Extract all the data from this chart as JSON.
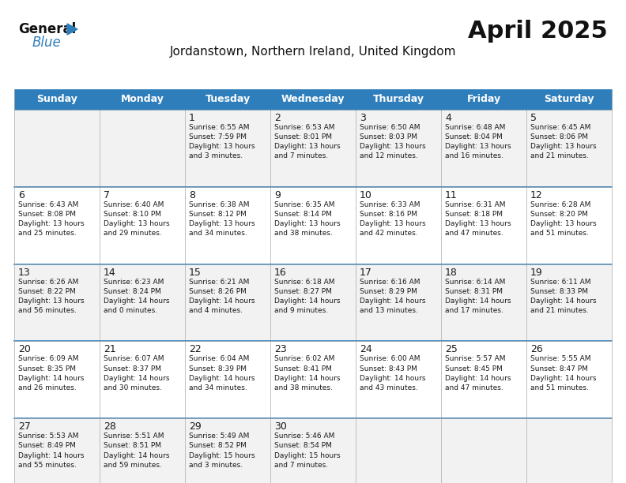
{
  "title": "April 2025",
  "subtitle": "Jordanstown, Northern Ireland, United Kingdom",
  "header_bg": "#2E7EBB",
  "header_text_color": "#FFFFFF",
  "cell_bg_odd": "#F2F2F2",
  "cell_bg_even": "#FFFFFF",
  "border_color": "#AAAAAA",
  "text_color": "#1a1a1a",
  "days_of_week": [
    "Sunday",
    "Monday",
    "Tuesday",
    "Wednesday",
    "Thursday",
    "Friday",
    "Saturday"
  ],
  "weeks": [
    [
      {
        "day": "",
        "info": ""
      },
      {
        "day": "",
        "info": ""
      },
      {
        "day": "1",
        "info": "Sunrise: 6:55 AM\nSunset: 7:59 PM\nDaylight: 13 hours\nand 3 minutes."
      },
      {
        "day": "2",
        "info": "Sunrise: 6:53 AM\nSunset: 8:01 PM\nDaylight: 13 hours\nand 7 minutes."
      },
      {
        "day": "3",
        "info": "Sunrise: 6:50 AM\nSunset: 8:03 PM\nDaylight: 13 hours\nand 12 minutes."
      },
      {
        "day": "4",
        "info": "Sunrise: 6:48 AM\nSunset: 8:04 PM\nDaylight: 13 hours\nand 16 minutes."
      },
      {
        "day": "5",
        "info": "Sunrise: 6:45 AM\nSunset: 8:06 PM\nDaylight: 13 hours\nand 21 minutes."
      }
    ],
    [
      {
        "day": "6",
        "info": "Sunrise: 6:43 AM\nSunset: 8:08 PM\nDaylight: 13 hours\nand 25 minutes."
      },
      {
        "day": "7",
        "info": "Sunrise: 6:40 AM\nSunset: 8:10 PM\nDaylight: 13 hours\nand 29 minutes."
      },
      {
        "day": "8",
        "info": "Sunrise: 6:38 AM\nSunset: 8:12 PM\nDaylight: 13 hours\nand 34 minutes."
      },
      {
        "day": "9",
        "info": "Sunrise: 6:35 AM\nSunset: 8:14 PM\nDaylight: 13 hours\nand 38 minutes."
      },
      {
        "day": "10",
        "info": "Sunrise: 6:33 AM\nSunset: 8:16 PM\nDaylight: 13 hours\nand 42 minutes."
      },
      {
        "day": "11",
        "info": "Sunrise: 6:31 AM\nSunset: 8:18 PM\nDaylight: 13 hours\nand 47 minutes."
      },
      {
        "day": "12",
        "info": "Sunrise: 6:28 AM\nSunset: 8:20 PM\nDaylight: 13 hours\nand 51 minutes."
      }
    ],
    [
      {
        "day": "13",
        "info": "Sunrise: 6:26 AM\nSunset: 8:22 PM\nDaylight: 13 hours\nand 56 minutes."
      },
      {
        "day": "14",
        "info": "Sunrise: 6:23 AM\nSunset: 8:24 PM\nDaylight: 14 hours\nand 0 minutes."
      },
      {
        "day": "15",
        "info": "Sunrise: 6:21 AM\nSunset: 8:26 PM\nDaylight: 14 hours\nand 4 minutes."
      },
      {
        "day": "16",
        "info": "Sunrise: 6:18 AM\nSunset: 8:27 PM\nDaylight: 14 hours\nand 9 minutes."
      },
      {
        "day": "17",
        "info": "Sunrise: 6:16 AM\nSunset: 8:29 PM\nDaylight: 14 hours\nand 13 minutes."
      },
      {
        "day": "18",
        "info": "Sunrise: 6:14 AM\nSunset: 8:31 PM\nDaylight: 14 hours\nand 17 minutes."
      },
      {
        "day": "19",
        "info": "Sunrise: 6:11 AM\nSunset: 8:33 PM\nDaylight: 14 hours\nand 21 minutes."
      }
    ],
    [
      {
        "day": "20",
        "info": "Sunrise: 6:09 AM\nSunset: 8:35 PM\nDaylight: 14 hours\nand 26 minutes."
      },
      {
        "day": "21",
        "info": "Sunrise: 6:07 AM\nSunset: 8:37 PM\nDaylight: 14 hours\nand 30 minutes."
      },
      {
        "day": "22",
        "info": "Sunrise: 6:04 AM\nSunset: 8:39 PM\nDaylight: 14 hours\nand 34 minutes."
      },
      {
        "day": "23",
        "info": "Sunrise: 6:02 AM\nSunset: 8:41 PM\nDaylight: 14 hours\nand 38 minutes."
      },
      {
        "day": "24",
        "info": "Sunrise: 6:00 AM\nSunset: 8:43 PM\nDaylight: 14 hours\nand 43 minutes."
      },
      {
        "day": "25",
        "info": "Sunrise: 5:57 AM\nSunset: 8:45 PM\nDaylight: 14 hours\nand 47 minutes."
      },
      {
        "day": "26",
        "info": "Sunrise: 5:55 AM\nSunset: 8:47 PM\nDaylight: 14 hours\nand 51 minutes."
      }
    ],
    [
      {
        "day": "27",
        "info": "Sunrise: 5:53 AM\nSunset: 8:49 PM\nDaylight: 14 hours\nand 55 minutes."
      },
      {
        "day": "28",
        "info": "Sunrise: 5:51 AM\nSunset: 8:51 PM\nDaylight: 14 hours\nand 59 minutes."
      },
      {
        "day": "29",
        "info": "Sunrise: 5:49 AM\nSunset: 8:52 PM\nDaylight: 15 hours\nand 3 minutes."
      },
      {
        "day": "30",
        "info": "Sunrise: 5:46 AM\nSunset: 8:54 PM\nDaylight: 15 hours\nand 7 minutes."
      },
      {
        "day": "",
        "info": ""
      },
      {
        "day": "",
        "info": ""
      },
      {
        "day": "",
        "info": ""
      }
    ]
  ],
  "title_fontsize": 22,
  "subtitle_fontsize": 11,
  "header_fontsize": 9,
  "day_num_fontsize": 9,
  "info_fontsize": 6.5
}
